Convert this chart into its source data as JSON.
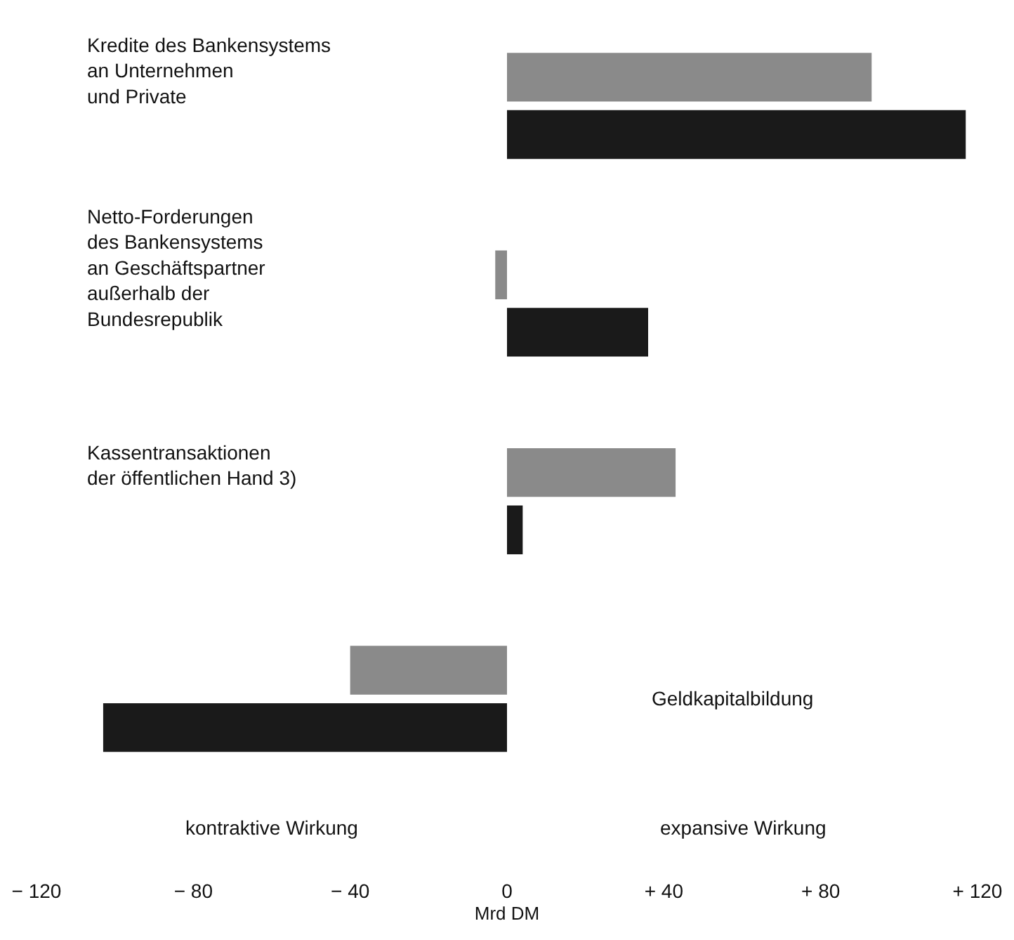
{
  "chart_data": {
    "type": "bar",
    "orientation": "horizontal",
    "xlabel": "Mrd DM",
    "categories": [
      "Kredite des Bankensystems\nan Unternehmen\nund Private",
      "Netto-Forderungen\ndes Bankensystems\nan Geschäftspartner\naußerhalb der\nBundesrepublik",
      "Kassentransaktionen\nder öffentlichen Hand 3)",
      "Geldkapitalbildung"
    ],
    "series": [
      {
        "color": "#8a8a8a",
        "values": [
          93,
          -3,
          43,
          -40
        ]
      },
      {
        "color": "#1a1a1a",
        "values": [
          117,
          36,
          4,
          -103
        ]
      }
    ],
    "xlim": [
      -120,
      120
    ],
    "xticks": [
      {
        "value": -120,
        "label": "− 120"
      },
      {
        "value": -80,
        "label": "− 80"
      },
      {
        "value": -40,
        "label": "− 40"
      },
      0,
      {
        "value": 40,
        "label": "+ 40"
      },
      {
        "value": 80,
        "label": "+ 80"
      },
      {
        "value": 120,
        "label": "+ 120"
      }
    ],
    "annotations": [
      "kontraktive Wirkung",
      "expansive Wirkung"
    ]
  }
}
